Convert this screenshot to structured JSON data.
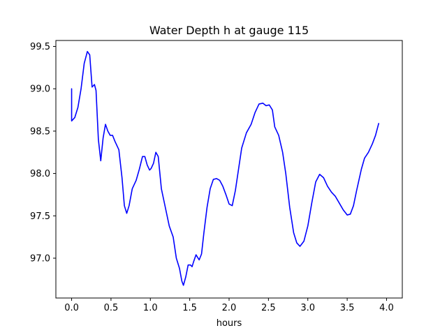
{
  "chart_data": {
    "type": "line",
    "title": "Water Depth h at gauge 115",
    "xlabel": "hours",
    "ylabel": "",
    "xlim": [
      -0.2,
      4.2
    ],
    "ylim": [
      96.53,
      99.57
    ],
    "grid": false,
    "legend": "none",
    "x_ticks": [
      0.0,
      0.5,
      1.0,
      1.5,
      2.0,
      2.5,
      3.0,
      3.5,
      4.0
    ],
    "x_tick_labels": [
      "0.0",
      "0.5",
      "1.0",
      "1.5",
      "2.0",
      "2.5",
      "3.0",
      "3.5",
      "4.0"
    ],
    "y_ticks": [
      97.0,
      97.5,
      98.0,
      98.5,
      99.0,
      99.5
    ],
    "y_tick_labels": [
      "97.0",
      "97.5",
      "98.0",
      "98.5",
      "99.0",
      "99.5"
    ],
    "series": [
      {
        "color": "#0000ff",
        "points": [
          [
            0.0,
            99.0
          ],
          [
            0.0,
            98.62
          ],
          [
            0.04,
            98.66
          ],
          [
            0.08,
            98.78
          ],
          [
            0.12,
            99.0
          ],
          [
            0.16,
            99.3
          ],
          [
            0.2,
            99.44
          ],
          [
            0.23,
            99.4
          ],
          [
            0.26,
            99.02
          ],
          [
            0.29,
            99.05
          ],
          [
            0.31,
            98.98
          ],
          [
            0.34,
            98.4
          ],
          [
            0.37,
            98.15
          ],
          [
            0.4,
            98.42
          ],
          [
            0.43,
            98.58
          ],
          [
            0.46,
            98.5
          ],
          [
            0.49,
            98.45
          ],
          [
            0.52,
            98.45
          ],
          [
            0.55,
            98.38
          ],
          [
            0.6,
            98.28
          ],
          [
            0.64,
            97.95
          ],
          [
            0.67,
            97.62
          ],
          [
            0.7,
            97.53
          ],
          [
            0.73,
            97.62
          ],
          [
            0.77,
            97.82
          ],
          [
            0.82,
            97.92
          ],
          [
            0.86,
            98.05
          ],
          [
            0.9,
            98.2
          ],
          [
            0.93,
            98.2
          ],
          [
            0.96,
            98.1
          ],
          [
            0.99,
            98.04
          ],
          [
            1.01,
            98.06
          ],
          [
            1.04,
            98.12
          ],
          [
            1.07,
            98.25
          ],
          [
            1.1,
            98.2
          ],
          [
            1.14,
            97.82
          ],
          [
            1.19,
            97.6
          ],
          [
            1.24,
            97.38
          ],
          [
            1.29,
            97.25
          ],
          [
            1.33,
            97.0
          ],
          [
            1.37,
            96.88
          ],
          [
            1.4,
            96.73
          ],
          [
            1.42,
            96.68
          ],
          [
            1.45,
            96.78
          ],
          [
            1.48,
            96.92
          ],
          [
            1.51,
            96.92
          ],
          [
            1.53,
            96.9
          ],
          [
            1.55,
            96.96
          ],
          [
            1.58,
            97.04
          ],
          [
            1.62,
            96.98
          ],
          [
            1.65,
            97.05
          ],
          [
            1.68,
            97.3
          ],
          [
            1.72,
            97.6
          ],
          [
            1.76,
            97.82
          ],
          [
            1.8,
            97.93
          ],
          [
            1.84,
            97.94
          ],
          [
            1.88,
            97.92
          ],
          [
            1.92,
            97.85
          ],
          [
            1.96,
            97.75
          ],
          [
            2.0,
            97.64
          ],
          [
            2.04,
            97.62
          ],
          [
            2.08,
            97.8
          ],
          [
            2.12,
            98.05
          ],
          [
            2.16,
            98.3
          ],
          [
            2.22,
            98.48
          ],
          [
            2.28,
            98.58
          ],
          [
            2.33,
            98.72
          ],
          [
            2.38,
            98.82
          ],
          [
            2.43,
            98.83
          ],
          [
            2.47,
            98.8
          ],
          [
            2.51,
            98.81
          ],
          [
            2.55,
            98.75
          ],
          [
            2.58,
            98.55
          ],
          [
            2.63,
            98.45
          ],
          [
            2.68,
            98.25
          ],
          [
            2.72,
            98.0
          ],
          [
            2.77,
            97.6
          ],
          [
            2.82,
            97.3
          ],
          [
            2.86,
            97.18
          ],
          [
            2.9,
            97.14
          ],
          [
            2.95,
            97.2
          ],
          [
            3.0,
            97.38
          ],
          [
            3.05,
            97.65
          ],
          [
            3.1,
            97.9
          ],
          [
            3.15,
            97.99
          ],
          [
            3.2,
            97.95
          ],
          [
            3.25,
            97.85
          ],
          [
            3.3,
            97.78
          ],
          [
            3.35,
            97.73
          ],
          [
            3.4,
            97.65
          ],
          [
            3.45,
            97.57
          ],
          [
            3.5,
            97.51
          ],
          [
            3.54,
            97.52
          ],
          [
            3.58,
            97.62
          ],
          [
            3.62,
            97.8
          ],
          [
            3.68,
            98.05
          ],
          [
            3.72,
            98.18
          ],
          [
            3.77,
            98.25
          ],
          [
            3.82,
            98.35
          ],
          [
            3.86,
            98.45
          ],
          [
            3.9,
            98.59
          ]
        ]
      }
    ]
  }
}
